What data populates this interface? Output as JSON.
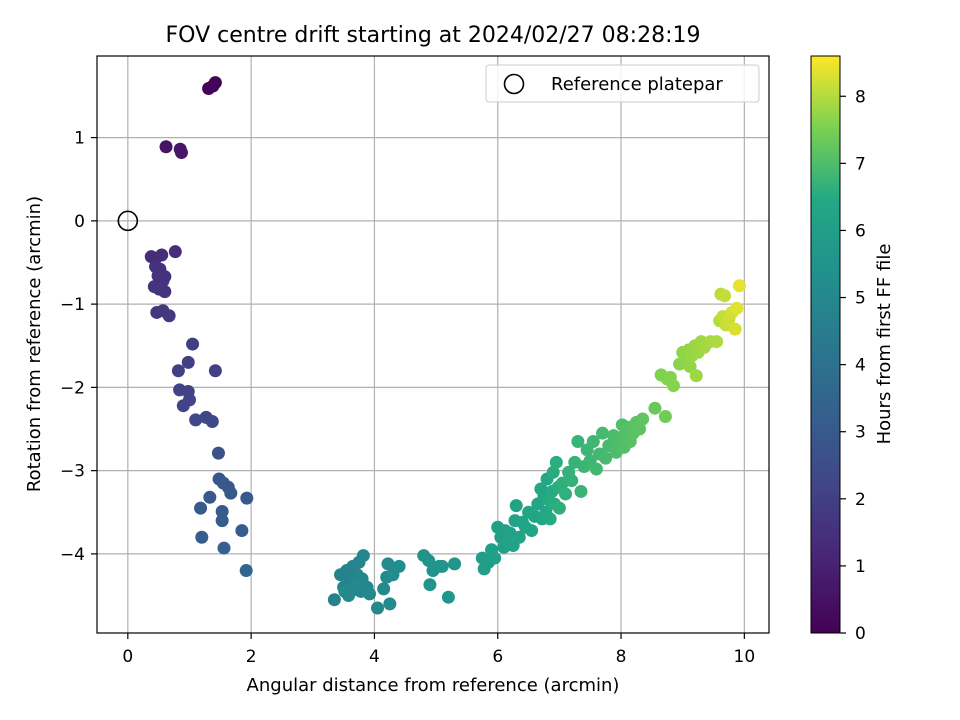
{
  "chart_data": {
    "type": "scatter",
    "title": "FOV centre drift starting at 2024/02/27 08:28:19",
    "xlabel": "Angular distance from reference (arcmin)",
    "ylabel": "Rotation from reference (arcmin)",
    "xlim": [
      -0.5,
      10.4
    ],
    "ylim": [
      -4.95,
      1.98
    ],
    "xticks": [
      0,
      2,
      4,
      6,
      8,
      10
    ],
    "yticks": [
      -4,
      -3,
      -2,
      -1,
      0,
      1
    ],
    "grid": true,
    "legend": {
      "placement": "upper-right",
      "label": "Reference platepar",
      "marker": "open-circle"
    },
    "reference_point": {
      "x": 0,
      "y": 0
    },
    "colormap": "viridis",
    "colorbar": {
      "label": "Hours from first FF file",
      "range": [
        0,
        8.6
      ],
      "ticks": [
        0,
        1,
        2,
        3,
        4,
        5,
        6,
        7,
        8
      ]
    },
    "points": [
      {
        "x": 1.31,
        "y": 1.59,
        "t": 0.05
      },
      {
        "x": 1.42,
        "y": 1.66,
        "t": 0.08
      },
      {
        "x": 1.38,
        "y": 1.62,
        "t": 0.1
      },
      {
        "x": 0.62,
        "y": 0.89,
        "t": 0.55
      },
      {
        "x": 0.85,
        "y": 0.86,
        "t": 0.6
      },
      {
        "x": 0.87,
        "y": 0.82,
        "t": 0.65
      },
      {
        "x": 0.38,
        "y": -0.43,
        "t": 1.35
      },
      {
        "x": 0.45,
        "y": -0.45,
        "t": 1.37
      },
      {
        "x": 0.55,
        "y": -0.41,
        "t": 1.4
      },
      {
        "x": 0.77,
        "y": -0.37,
        "t": 1.42
      },
      {
        "x": 0.45,
        "y": -0.55,
        "t": 1.45
      },
      {
        "x": 0.52,
        "y": -0.58,
        "t": 1.47
      },
      {
        "x": 0.49,
        "y": -0.66,
        "t": 1.5
      },
      {
        "x": 0.6,
        "y": -0.67,
        "t": 1.52
      },
      {
        "x": 0.57,
        "y": -0.72,
        "t": 1.55
      },
      {
        "x": 0.43,
        "y": -0.79,
        "t": 1.57
      },
      {
        "x": 0.51,
        "y": -0.82,
        "t": 1.6
      },
      {
        "x": 0.6,
        "y": -0.85,
        "t": 1.62
      },
      {
        "x": 0.47,
        "y": -1.1,
        "t": 1.7
      },
      {
        "x": 0.57,
        "y": -1.08,
        "t": 1.72
      },
      {
        "x": 0.67,
        "y": -1.14,
        "t": 1.75
      },
      {
        "x": 1.05,
        "y": -1.48,
        "t": 1.95
      },
      {
        "x": 0.98,
        "y": -1.7,
        "t": 2.0
      },
      {
        "x": 0.82,
        "y": -1.8,
        "t": 2.02
      },
      {
        "x": 1.42,
        "y": -1.8,
        "t": 2.05
      },
      {
        "x": 0.84,
        "y": -2.03,
        "t": 2.1
      },
      {
        "x": 0.98,
        "y": -2.05,
        "t": 2.12
      },
      {
        "x": 1.0,
        "y": -2.15,
        "t": 2.15
      },
      {
        "x": 0.9,
        "y": -2.22,
        "t": 2.17
      },
      {
        "x": 1.1,
        "y": -2.39,
        "t": 2.3
      },
      {
        "x": 1.27,
        "y": -2.36,
        "t": 2.32
      },
      {
        "x": 1.37,
        "y": -2.41,
        "t": 2.35
      },
      {
        "x": 1.47,
        "y": -2.79,
        "t": 2.7
      },
      {
        "x": 1.48,
        "y": -3.1,
        "t": 2.9
      },
      {
        "x": 1.55,
        "y": -3.15,
        "t": 2.92
      },
      {
        "x": 1.63,
        "y": -3.2,
        "t": 2.95
      },
      {
        "x": 1.67,
        "y": -3.27,
        "t": 2.97
      },
      {
        "x": 1.33,
        "y": -3.32,
        "t": 3.0
      },
      {
        "x": 1.93,
        "y": -3.33,
        "t": 3.02
      },
      {
        "x": 1.18,
        "y": -3.45,
        "t": 3.05
      },
      {
        "x": 1.53,
        "y": -3.49,
        "t": 3.07
      },
      {
        "x": 1.53,
        "y": -3.6,
        "t": 3.1
      },
      {
        "x": 1.85,
        "y": -3.72,
        "t": 3.15
      },
      {
        "x": 1.2,
        "y": -3.8,
        "t": 3.2
      },
      {
        "x": 1.56,
        "y": -3.93,
        "t": 3.3
      },
      {
        "x": 1.92,
        "y": -4.2,
        "t": 3.45
      },
      {
        "x": 3.35,
        "y": -4.55,
        "t": 4.7
      },
      {
        "x": 3.45,
        "y": -4.25,
        "t": 4.72
      },
      {
        "x": 3.5,
        "y": -4.4,
        "t": 4.74
      },
      {
        "x": 3.55,
        "y": -4.2,
        "t": 4.76
      },
      {
        "x": 3.6,
        "y": -4.3,
        "t": 4.78
      },
      {
        "x": 3.62,
        "y": -4.45,
        "t": 4.8
      },
      {
        "x": 3.65,
        "y": -4.15,
        "t": 4.82
      },
      {
        "x": 3.7,
        "y": -4.35,
        "t": 4.84
      },
      {
        "x": 3.72,
        "y": -4.25,
        "t": 4.86
      },
      {
        "x": 3.75,
        "y": -4.1,
        "t": 4.88
      },
      {
        "x": 3.78,
        "y": -4.45,
        "t": 4.9
      },
      {
        "x": 3.8,
        "y": -4.3,
        "t": 4.92
      },
      {
        "x": 3.82,
        "y": -4.02,
        "t": 4.94
      },
      {
        "x": 3.88,
        "y": -4.4,
        "t": 4.96
      },
      {
        "x": 3.92,
        "y": -4.48,
        "t": 4.98
      },
      {
        "x": 3.58,
        "y": -4.5,
        "t": 5.0
      },
      {
        "x": 3.68,
        "y": -4.38,
        "t": 5.02
      },
      {
        "x": 3.52,
        "y": -4.45,
        "t": 5.03
      },
      {
        "x": 4.05,
        "y": -4.65,
        "t": 5.05
      },
      {
        "x": 4.15,
        "y": -4.42,
        "t": 5.07
      },
      {
        "x": 4.2,
        "y": -4.28,
        "t": 5.09
      },
      {
        "x": 4.22,
        "y": -4.12,
        "t": 5.11
      },
      {
        "x": 4.25,
        "y": -4.6,
        "t": 5.13
      },
      {
        "x": 4.3,
        "y": -4.25,
        "t": 5.15
      },
      {
        "x": 4.4,
        "y": -4.15,
        "t": 5.18
      },
      {
        "x": 4.8,
        "y": -4.02,
        "t": 5.45
      },
      {
        "x": 4.88,
        "y": -4.08,
        "t": 5.48
      },
      {
        "x": 4.9,
        "y": -4.37,
        "t": 5.5
      },
      {
        "x": 4.95,
        "y": -4.2,
        "t": 5.52
      },
      {
        "x": 5.05,
        "y": -4.15,
        "t": 5.55
      },
      {
        "x": 5.1,
        "y": -4.15,
        "t": 5.57
      },
      {
        "x": 5.2,
        "y": -4.52,
        "t": 5.6
      },
      {
        "x": 5.3,
        "y": -4.12,
        "t": 5.62
      },
      {
        "x": 5.75,
        "y": -4.05,
        "t": 5.95
      },
      {
        "x": 5.78,
        "y": -4.18,
        "t": 5.97
      },
      {
        "x": 5.85,
        "y": -4.1,
        "t": 5.99
      },
      {
        "x": 5.9,
        "y": -3.95,
        "t": 6.01
      },
      {
        "x": 5.95,
        "y": -4.05,
        "t": 6.03
      },
      {
        "x": 6.0,
        "y": -3.68,
        "t": 6.05
      },
      {
        "x": 6.05,
        "y": -3.8,
        "t": 6.07
      },
      {
        "x": 6.1,
        "y": -3.92,
        "t": 6.09
      },
      {
        "x": 6.12,
        "y": -3.72,
        "t": 6.11
      },
      {
        "x": 6.15,
        "y": -3.85,
        "t": 6.13
      },
      {
        "x": 6.2,
        "y": -3.75,
        "t": 6.15
      },
      {
        "x": 6.25,
        "y": -3.9,
        "t": 6.17
      },
      {
        "x": 6.28,
        "y": -3.6,
        "t": 6.19
      },
      {
        "x": 6.3,
        "y": -3.42,
        "t": 6.21
      },
      {
        "x": 6.35,
        "y": -3.8,
        "t": 6.23
      },
      {
        "x": 6.4,
        "y": -3.62,
        "t": 6.25
      },
      {
        "x": 6.45,
        "y": -3.68,
        "t": 6.27
      },
      {
        "x": 6.5,
        "y": -3.5,
        "t": 6.29
      },
      {
        "x": 6.55,
        "y": -3.72,
        "t": 6.31
      },
      {
        "x": 6.6,
        "y": -3.55,
        "t": 6.33
      },
      {
        "x": 6.65,
        "y": -3.4,
        "t": 6.35
      },
      {
        "x": 6.7,
        "y": -3.22,
        "t": 6.37
      },
      {
        "x": 6.72,
        "y": -3.58,
        "t": 6.39
      },
      {
        "x": 6.75,
        "y": -3.3,
        "t": 6.41
      },
      {
        "x": 6.78,
        "y": -3.5,
        "t": 6.43
      },
      {
        "x": 6.8,
        "y": -3.1,
        "t": 6.45
      },
      {
        "x": 6.82,
        "y": -3.35,
        "t": 6.47
      },
      {
        "x": 6.85,
        "y": -3.58,
        "t": 6.49
      },
      {
        "x": 6.88,
        "y": -3.25,
        "t": 6.51
      },
      {
        "x": 6.9,
        "y": -3.02,
        "t": 6.53
      },
      {
        "x": 6.92,
        "y": -3.4,
        "t": 6.55
      },
      {
        "x": 6.95,
        "y": -2.9,
        "t": 6.57
      },
      {
        "x": 6.98,
        "y": -3.2,
        "t": 6.59
      },
      {
        "x": 7.0,
        "y": -3.45,
        "t": 6.61
      },
      {
        "x": 7.05,
        "y": -3.15,
        "t": 6.63
      },
      {
        "x": 7.1,
        "y": -3.28,
        "t": 6.65
      },
      {
        "x": 7.15,
        "y": -3.02,
        "t": 6.67
      },
      {
        "x": 7.2,
        "y": -3.12,
        "t": 6.69
      },
      {
        "x": 7.25,
        "y": -2.9,
        "t": 6.71
      },
      {
        "x": 7.3,
        "y": -2.65,
        "t": 6.73
      },
      {
        "x": 7.35,
        "y": -3.25,
        "t": 6.75
      },
      {
        "x": 7.4,
        "y": -2.95,
        "t": 6.77
      },
      {
        "x": 7.45,
        "y": -2.75,
        "t": 6.79
      },
      {
        "x": 7.5,
        "y": -2.88,
        "t": 6.81
      },
      {
        "x": 7.55,
        "y": -2.65,
        "t": 6.83
      },
      {
        "x": 7.6,
        "y": -2.98,
        "t": 6.85
      },
      {
        "x": 7.65,
        "y": -2.8,
        "t": 6.87
      },
      {
        "x": 7.7,
        "y": -2.55,
        "t": 6.89
      },
      {
        "x": 7.75,
        "y": -2.85,
        "t": 6.91
      },
      {
        "x": 7.8,
        "y": -2.7,
        "t": 6.93
      },
      {
        "x": 7.88,
        "y": -2.58,
        "t": 6.95
      },
      {
        "x": 7.92,
        "y": -2.78,
        "t": 6.97
      },
      {
        "x": 7.95,
        "y": -2.68,
        "t": 6.99
      },
      {
        "x": 8.0,
        "y": -2.6,
        "t": 7.01
      },
      {
        "x": 8.02,
        "y": -2.45,
        "t": 7.03
      },
      {
        "x": 8.05,
        "y": -2.72,
        "t": 7.05
      },
      {
        "x": 8.1,
        "y": -2.58,
        "t": 7.07
      },
      {
        "x": 8.12,
        "y": -2.48,
        "t": 7.09
      },
      {
        "x": 8.15,
        "y": -2.65,
        "t": 7.11
      },
      {
        "x": 8.2,
        "y": -2.55,
        "t": 7.13
      },
      {
        "x": 8.25,
        "y": -2.42,
        "t": 7.15
      },
      {
        "x": 8.3,
        "y": -2.5,
        "t": 7.17
      },
      {
        "x": 8.35,
        "y": -2.38,
        "t": 7.19
      },
      {
        "x": 8.55,
        "y": -2.25,
        "t": 7.3
      },
      {
        "x": 8.72,
        "y": -2.35,
        "t": 7.4
      },
      {
        "x": 8.65,
        "y": -1.85,
        "t": 7.55
      },
      {
        "x": 8.75,
        "y": -1.9,
        "t": 7.58
      },
      {
        "x": 8.8,
        "y": -1.88,
        "t": 7.6
      },
      {
        "x": 8.85,
        "y": -1.98,
        "t": 7.62
      },
      {
        "x": 8.95,
        "y": -1.72,
        "t": 7.65
      },
      {
        "x": 9.0,
        "y": -1.58,
        "t": 7.68
      },
      {
        "x": 9.05,
        "y": -1.62,
        "t": 7.7
      },
      {
        "x": 9.1,
        "y": -1.55,
        "t": 7.72
      },
      {
        "x": 9.12,
        "y": -1.75,
        "t": 7.74
      },
      {
        "x": 9.15,
        "y": -1.62,
        "t": 7.76
      },
      {
        "x": 9.2,
        "y": -1.5,
        "t": 7.78
      },
      {
        "x": 9.22,
        "y": -1.86,
        "t": 7.8
      },
      {
        "x": 9.25,
        "y": -1.58,
        "t": 7.82
      },
      {
        "x": 9.3,
        "y": -1.45,
        "t": 7.84
      },
      {
        "x": 9.35,
        "y": -1.52,
        "t": 7.86
      },
      {
        "x": 9.45,
        "y": -1.45,
        "t": 7.9
      },
      {
        "x": 9.55,
        "y": -1.45,
        "t": 7.95
      },
      {
        "x": 9.6,
        "y": -1.2,
        "t": 8.0
      },
      {
        "x": 9.62,
        "y": -0.88,
        "t": 8.05
      },
      {
        "x": 9.65,
        "y": -1.15,
        "t": 8.1
      },
      {
        "x": 9.68,
        "y": -0.9,
        "t": 8.12
      },
      {
        "x": 9.7,
        "y": -1.25,
        "t": 8.15
      },
      {
        "x": 9.75,
        "y": -1.18,
        "t": 8.2
      },
      {
        "x": 9.8,
        "y": -1.1,
        "t": 8.25
      },
      {
        "x": 9.85,
        "y": -1.3,
        "t": 8.3
      },
      {
        "x": 9.88,
        "y": -1.05,
        "t": 8.35
      },
      {
        "x": 9.92,
        "y": -0.78,
        "t": 8.4
      }
    ]
  }
}
